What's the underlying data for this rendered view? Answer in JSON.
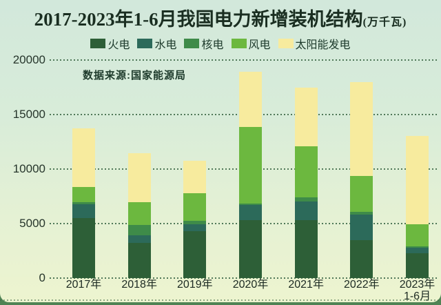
{
  "title": {
    "text": "2017-2023年1-6月我国电力新增装机结构",
    "unit": "(万千瓦)"
  },
  "source_note": "数据来源:国家能源局",
  "colors": {
    "card_bg_top": "#d2e8db",
    "card_bg_bottom": "#edf4cf",
    "outer_bg": "#4f8354",
    "grid": "#4e7757",
    "title_text": "#1a2e21",
    "body_text": "#1d3a2b",
    "axis_text": "#26352b"
  },
  "chart_data": {
    "type": "bar",
    "stacked": true,
    "title": "2017-2023年1-6月我国电力新增装机结构",
    "unit": "万千瓦",
    "grid": "dotted horizontal",
    "legend_position": "top",
    "ylim": [
      0,
      20000
    ],
    "yticks": [
      0,
      5000,
      10000,
      15000,
      20000
    ],
    "categories": [
      "2017年",
      "2018年",
      "2019年",
      "2020年",
      "2021年",
      "2022年",
      "2023年"
    ],
    "category_sublabels": [
      "",
      "",
      "",
      "",
      "",
      "",
      "1-6月"
    ],
    "series": [
      {
        "name": "火电",
        "color": "#2d5f37",
        "values": [
          5520,
          3200,
          4320,
          5320,
          5300,
          3480,
          2250
        ]
      },
      {
        "name": "水电",
        "color": "#2c6a5a",
        "values": [
          1250,
          740,
          630,
          1410,
          1740,
          2350,
          560
        ]
      },
      {
        "name": "核电",
        "color": "#3e8b49",
        "values": [
          200,
          950,
          320,
          110,
          370,
          230,
          120
        ]
      },
      {
        "name": "风电",
        "color": "#6cb83f",
        "values": [
          1380,
          2070,
          2530,
          7040,
          4710,
          3310,
          2000
        ]
      },
      {
        "name": "太阳能发电",
        "color": "#f7eb9e",
        "values": [
          5380,
          4470,
          2960,
          5030,
          5360,
          8590,
          8100
        ]
      }
    ],
    "totals": [
      13730,
      11430,
      10760,
      18910,
      17480,
      17960,
      13030
    ]
  }
}
